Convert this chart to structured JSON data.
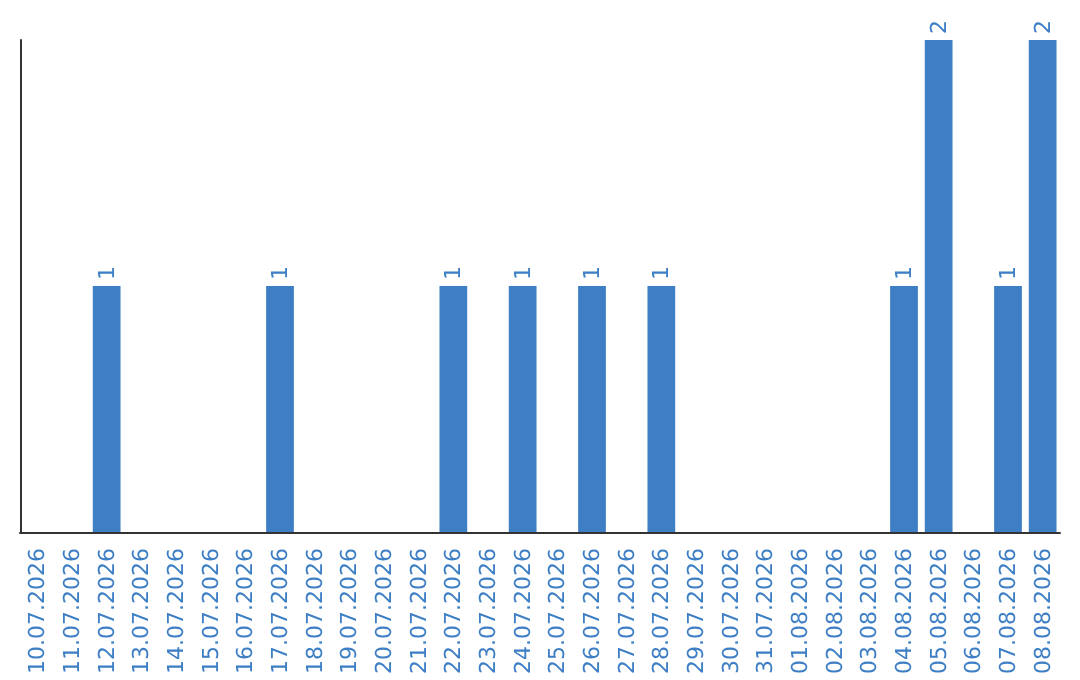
{
  "chart_data": {
    "type": "bar",
    "categories": [
      "10.07.2026",
      "11.07.2026",
      "12.07.2026",
      "13.07.2026",
      "14.07.2026",
      "15.07.2026",
      "16.07.2026",
      "17.07.2026",
      "18.07.2026",
      "19.07.2026",
      "20.07.2026",
      "21.07.2026",
      "22.07.2026",
      "23.07.2026",
      "24.07.2026",
      "25.07.2026",
      "26.07.2026",
      "27.07.2026",
      "28.07.2026",
      "29.07.2026",
      "30.07.2026",
      "31.07.2026",
      "01.08.2026",
      "02.08.2026",
      "03.08.2026",
      "04.08.2026",
      "05.08.2026",
      "06.08.2026",
      "07.08.2026",
      "08.08.2026"
    ],
    "values": [
      0,
      0,
      1,
      0,
      0,
      0,
      0,
      1,
      0,
      0,
      0,
      0,
      1,
      0,
      1,
      0,
      1,
      0,
      1,
      0,
      0,
      0,
      0,
      0,
      0,
      1,
      2,
      0,
      1,
      2
    ],
    "value_labels": [
      null,
      null,
      "1",
      null,
      null,
      null,
      null,
      "1",
      null,
      null,
      null,
      null,
      "1",
      null,
      "1",
      null,
      "1",
      null,
      "1",
      null,
      null,
      null,
      null,
      null,
      null,
      "1",
      "2",
      null,
      "1",
      "2"
    ],
    "color": "#3d7ec4",
    "tick_labels": "x"
  }
}
